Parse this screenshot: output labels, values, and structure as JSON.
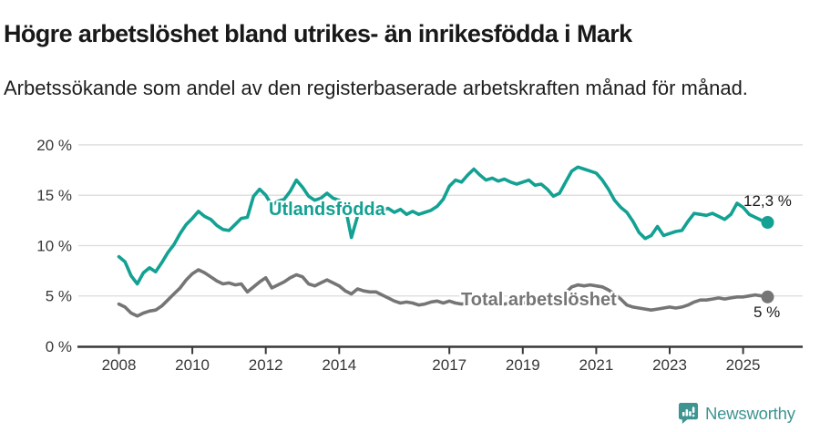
{
  "branding": {
    "logo_text": "Newsworthy",
    "logo_color": "#3e9491",
    "logo_icon": "speech-bubble-bar-chart"
  },
  "chart_data": {
    "type": "line",
    "title": "Högre arbetslöshet bland utrikes- än inrikesfödda i Mark",
    "subtitle": "Arbetssökande som andel av den registerbaserade arbetskraften månad för månad.",
    "x_unit": "year (monthly share of labour force, sampled every 2 months)",
    "x_start_year": 2008,
    "x_step_months": 2,
    "xlim": [
      2006.95,
      2026.6
    ],
    "ylim": [
      0,
      20
    ],
    "grid": "horizontal",
    "legend_position": "inline-labels",
    "axis_color": "#383838",
    "grid_color": "#dcdcdc",
    "tick_label_color": "#383838",
    "yticks": [
      {
        "v": 20,
        "label": "20 %"
      },
      {
        "v": 15,
        "label": "15 %"
      },
      {
        "v": 10,
        "label": "10 %"
      },
      {
        "v": 5,
        "label": "5 %"
      },
      {
        "v": 0,
        "label": "0 %"
      }
    ],
    "xticks": [
      {
        "v": 2008,
        "label": "2008"
      },
      {
        "v": 2010,
        "label": "2010"
      },
      {
        "v": 2012,
        "label": "2012"
      },
      {
        "v": 2014,
        "label": "2014"
      },
      {
        "v": 2017,
        "label": "2017"
      },
      {
        "v": 2019,
        "label": "2019"
      },
      {
        "v": 2021,
        "label": "2021"
      },
      {
        "v": 2023,
        "label": "2023"
      },
      {
        "v": 2025,
        "label": "2025"
      }
    ],
    "series": [
      {
        "name": "Utlandsfödda",
        "color": "#12a192",
        "end_label": "12,3 %",
        "end_value": 12.3,
        "values": [
          8.9,
          8.4,
          7.0,
          6.2,
          7.3,
          7.8,
          7.4,
          8.3,
          9.3,
          10.1,
          11.2,
          12.1,
          12.7,
          13.4,
          12.9,
          12.6,
          12.0,
          11.6,
          11.5,
          12.1,
          12.7,
          12.8,
          14.9,
          15.6,
          15.0,
          14.0,
          14.4,
          14.6,
          15.4,
          16.5,
          15.8,
          14.9,
          14.5,
          14.7,
          15.2,
          14.7,
          14.5,
          13.8,
          10.8,
          12.9,
          14.0,
          13.9,
          13.9,
          13.5,
          13.7,
          13.3,
          13.6,
          13.1,
          13.4,
          13.1,
          13.3,
          13.5,
          13.9,
          14.6,
          15.9,
          16.5,
          16.3,
          17.0,
          17.6,
          17.0,
          16.5,
          16.7,
          16.4,
          16.6,
          16.3,
          16.1,
          16.3,
          16.5,
          16.0,
          16.1,
          15.6,
          14.9,
          15.2,
          16.3,
          17.4,
          17.8,
          17.6,
          17.4,
          17.2,
          16.5,
          15.6,
          14.5,
          13.8,
          13.3,
          12.4,
          11.3,
          10.7,
          11.0,
          11.9,
          11.0,
          11.2,
          11.4,
          11.5,
          12.4,
          13.2,
          13.1,
          13.0,
          13.2,
          12.9,
          12.6,
          13.1,
          14.2,
          13.8,
          13.1,
          12.8,
          12.5,
          12.3
        ]
      },
      {
        "name": "Total arbetslöshet",
        "color": "#757575",
        "end_label": "5 %",
        "end_value": 5,
        "values": [
          4.2,
          3.9,
          3.3,
          3.0,
          3.3,
          3.5,
          3.6,
          4.0,
          4.6,
          5.2,
          5.8,
          6.6,
          7.2,
          7.6,
          7.3,
          6.9,
          6.5,
          6.2,
          6.3,
          6.1,
          6.2,
          5.4,
          5.9,
          6.4,
          6.8,
          5.8,
          6.1,
          6.4,
          6.8,
          7.1,
          6.9,
          6.2,
          6.0,
          6.3,
          6.6,
          6.3,
          6.0,
          5.5,
          5.2,
          5.7,
          5.5,
          5.4,
          5.4,
          5.1,
          4.8,
          4.5,
          4.3,
          4.4,
          4.3,
          4.1,
          4.2,
          4.4,
          4.5,
          4.3,
          4.5,
          4.3,
          4.2,
          4.3,
          4.4,
          4.3,
          4.4,
          4.2,
          4.3,
          4.2,
          4.3,
          4.4,
          4.3,
          4.4,
          4.4,
          4.5,
          4.5,
          4.6,
          4.8,
          5.3,
          5.9,
          6.1,
          6.0,
          6.1,
          6.0,
          5.9,
          5.6,
          5.2,
          4.7,
          4.1,
          3.9,
          3.8,
          3.7,
          3.6,
          3.7,
          3.8,
          3.9,
          3.8,
          3.9,
          4.1,
          4.4,
          4.6,
          4.6,
          4.7,
          4.8,
          4.7,
          4.8,
          4.9,
          4.9,
          5.0,
          5.1,
          5.0,
          4.9
        ]
      }
    ]
  }
}
